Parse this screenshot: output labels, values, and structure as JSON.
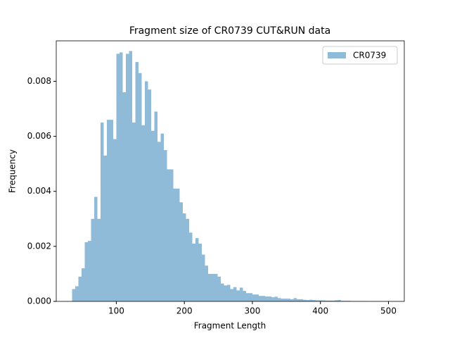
{
  "chart_data": {
    "type": "histogram",
    "title": "Fragment size of CR0739 CUT&RUN data",
    "xlabel": "Fragment Length",
    "ylabel": "Frequency",
    "bins": [
      35,
      39.65,
      44.3,
      48.95,
      53.6,
      58.25,
      62.9,
      67.55,
      72.2,
      76.85,
      81.5,
      86.15,
      90.8,
      95.45,
      100.1,
      104.75,
      109.4,
      114.05,
      118.7,
      123.35,
      128,
      132.65,
      137.3,
      141.95,
      146.6,
      151.25,
      155.9,
      160.55,
      165.2,
      169.85,
      174.5,
      179.15,
      183.8,
      188.45,
      193.1,
      197.75,
      202.4,
      207.05,
      211.7,
      216.35,
      221,
      225.65,
      230.3,
      234.95,
      239.6,
      244.25,
      248.9,
      253.55,
      258.2,
      262.85,
      267.5,
      272.15,
      276.8,
      281.45,
      286.1,
      290.75,
      295.4,
      300.05,
      304.7,
      309.35,
      314,
      318.65,
      323.3,
      327.95,
      332.6,
      337.25,
      341.9,
      346.55,
      351.2,
      355.85,
      360.5,
      365.15,
      369.8,
      374.45,
      379.1,
      383.75,
      388.4,
      393.05,
      397.7,
      402.35,
      407,
      411.65,
      416.3,
      420.95,
      425.6,
      430.25,
      434.9,
      439.55,
      444.2,
      448.85,
      453.5,
      458.15,
      462.8,
      467.45,
      472.1,
      476.75,
      481.4,
      486.05,
      490.7,
      495.35,
      500
    ],
    "series": [
      {
        "name": "CR0739",
        "color": "#8fbbd9",
        "values": [
          0.00045,
          0.00055,
          0.0009,
          0.0012,
          0.00215,
          0.0022,
          0.003,
          0.0038,
          0.003,
          0.0065,
          0.0053,
          0.0066,
          0.0066,
          0.0059,
          0.009,
          0.00905,
          0.0076,
          0.009,
          0.0091,
          0.0065,
          0.0087,
          0.0083,
          0.0064,
          0.008,
          0.0077,
          0.0062,
          0.0069,
          0.0058,
          0.0061,
          0.0055,
          0.0048,
          0.0048,
          0.0041,
          0.0041,
          0.0036,
          0.0032,
          0.003,
          0.0025,
          0.0021,
          0.0023,
          0.0021,
          0.0017,
          0.0013,
          0.001,
          0.001,
          0.001,
          0.0009,
          0.00065,
          0.00058,
          0.0006,
          0.00045,
          0.00052,
          0.0004,
          0.0005,
          0.00038,
          0.0003,
          0.0003,
          0.00025,
          0.00025,
          0.0002,
          0.0002,
          0.00018,
          0.00018,
          0.00015,
          0.00017,
          0.00012,
          0.0001,
          0.0001,
          0.0001,
          8e-05,
          0.00012,
          8e-05,
          8e-05,
          6e-05,
          5e-05,
          6e-05,
          5e-05,
          4e-05,
          4e-05,
          4e-05,
          3e-05,
          3e-05,
          3e-05,
          4e-05,
          5e-05,
          2e-05,
          2e-05,
          2e-05,
          1e-05,
          1e-05,
          1e-05,
          1e-05,
          1e-05,
          1e-05,
          0,
          0,
          0,
          0,
          0,
          1e-05
        ]
      }
    ],
    "xlim": [
      11.75,
      523.25
    ],
    "xticks": [
      100,
      200,
      300,
      400,
      500
    ],
    "ylim": [
      0,
      0.00947
    ],
    "yticks": [
      {
        "value": 0,
        "label": "0.000"
      },
      0.002,
      0.004,
      0.006,
      0.008
    ],
    "legend": "upper right"
  }
}
